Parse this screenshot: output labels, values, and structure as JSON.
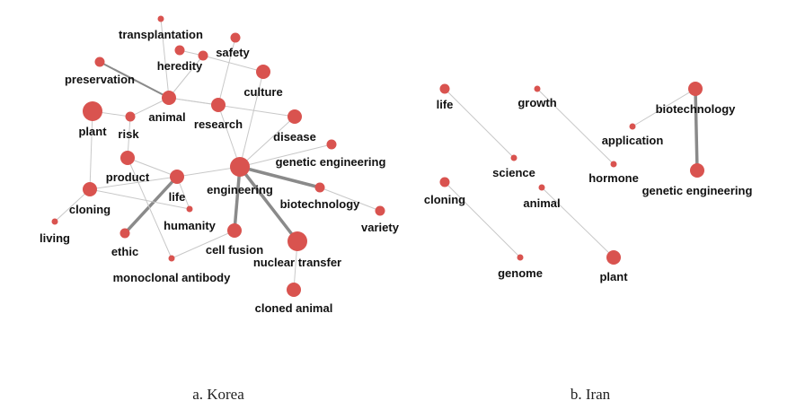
{
  "panels": [
    {
      "id": "korea",
      "caption": "a. Korea",
      "nodes": [
        {
          "id": "transplantation",
          "label": "transplantation",
          "size": "s"
        },
        {
          "id": "safety",
          "label": "safety",
          "size": "s"
        },
        {
          "id": "heredity",
          "label": "heredity",
          "size": "s"
        },
        {
          "id": "preservation",
          "label": "preservation",
          "size": "s"
        },
        {
          "id": "culture",
          "label": "culture",
          "size": "m"
        },
        {
          "id": "animal",
          "label": "animal",
          "size": "m"
        },
        {
          "id": "research",
          "label": "research",
          "size": "m"
        },
        {
          "id": "plant",
          "label": "plant",
          "size": "l"
        },
        {
          "id": "risk",
          "label": "risk",
          "size": "s"
        },
        {
          "id": "disease",
          "label": "disease",
          "size": "m"
        },
        {
          "id": "genetic_engineering",
          "label": "genetic engineering",
          "size": "s"
        },
        {
          "id": "product",
          "label": "product",
          "size": "m"
        },
        {
          "id": "life",
          "label": "life",
          "size": "m"
        },
        {
          "id": "engineering",
          "label": "engineering",
          "size": "l"
        },
        {
          "id": "cloning",
          "label": "cloning",
          "size": "m"
        },
        {
          "id": "biotechnology",
          "label": "biotechnology",
          "size": "s"
        },
        {
          "id": "humanity",
          "label": "humanity",
          "size": "xs"
        },
        {
          "id": "variety",
          "label": "variety",
          "size": "s"
        },
        {
          "id": "living",
          "label": "living",
          "size": "xs"
        },
        {
          "id": "ethic",
          "label": "ethic",
          "size": "s"
        },
        {
          "id": "cell_fusion",
          "label": "cell fusion",
          "size": "m"
        },
        {
          "id": "nuclear_transfer",
          "label": "nuclear transfer",
          "size": "l"
        },
        {
          "id": "monoclonal_antibody",
          "label": "monoclonal antibody",
          "size": "xs"
        },
        {
          "id": "cloned_animal",
          "label": "cloned animal",
          "size": "m"
        },
        {
          "id": "top_unlabeled",
          "label": "",
          "size": "xs"
        }
      ],
      "edges": [
        {
          "source": "top_unlabeled",
          "target": "animal",
          "weight": 1
        },
        {
          "source": "transplantation",
          "target": "heredity",
          "weight": 1
        },
        {
          "source": "heredity",
          "target": "animal",
          "weight": 1
        },
        {
          "source": "heredity",
          "target": "culture",
          "weight": 1
        },
        {
          "source": "safety",
          "target": "research",
          "weight": 1
        },
        {
          "source": "preservation",
          "target": "animal",
          "weight": 2
        },
        {
          "source": "animal",
          "target": "research",
          "weight": 1
        },
        {
          "source": "animal",
          "target": "disease",
          "weight": 1
        },
        {
          "source": "animal",
          "target": "risk",
          "weight": 1
        },
        {
          "source": "plant",
          "target": "risk",
          "weight": 1
        },
        {
          "source": "plant",
          "target": "cloning",
          "weight": 1
        },
        {
          "source": "research",
          "target": "engineering",
          "weight": 1
        },
        {
          "source": "culture",
          "target": "engineering",
          "weight": 1
        },
        {
          "source": "disease",
          "target": "engineering",
          "weight": 1
        },
        {
          "source": "genetic_engineering",
          "target": "engineering",
          "weight": 1
        },
        {
          "source": "risk",
          "target": "product",
          "weight": 1
        },
        {
          "source": "product",
          "target": "life",
          "weight": 1
        },
        {
          "source": "life",
          "target": "engineering",
          "weight": 1
        },
        {
          "source": "life",
          "target": "ethic",
          "weight": 3
        },
        {
          "source": "life",
          "target": "humanity",
          "weight": 1
        },
        {
          "source": "cloning",
          "target": "life",
          "weight": 1
        },
        {
          "source": "cloning",
          "target": "living",
          "weight": 1
        },
        {
          "source": "cloning",
          "target": "humanity",
          "weight": 1
        },
        {
          "source": "engineering",
          "target": "biotechnology",
          "weight": 3
        },
        {
          "source": "engineering",
          "target": "cell_fusion",
          "weight": 3
        },
        {
          "source": "engineering",
          "target": "nuclear_transfer",
          "weight": 3
        },
        {
          "source": "biotechnology",
          "target": "variety",
          "weight": 1
        },
        {
          "source": "cell_fusion",
          "target": "monoclonal_antibody",
          "weight": 1
        },
        {
          "source": "nuclear_transfer",
          "target": "cloned_animal",
          "weight": 1
        },
        {
          "source": "product",
          "target": "monoclonal_antibody",
          "weight": 1
        }
      ]
    },
    {
      "id": "iran",
      "caption": "b. Iran",
      "nodes": [
        {
          "id": "life",
          "label": "life",
          "size": "s"
        },
        {
          "id": "growth",
          "label": "growth",
          "size": "xs"
        },
        {
          "id": "biotechnology",
          "label": "biotechnology",
          "size": "m"
        },
        {
          "id": "application",
          "label": "application",
          "size": "xs"
        },
        {
          "id": "science",
          "label": "science",
          "size": "xs"
        },
        {
          "id": "hormone",
          "label": "hormone",
          "size": "xs"
        },
        {
          "id": "genetic_engineering",
          "label": "genetic engineering",
          "size": "m"
        },
        {
          "id": "cloning",
          "label": "cloning",
          "size": "s"
        },
        {
          "id": "animal",
          "label": "animal",
          "size": "xs"
        },
        {
          "id": "genome",
          "label": "genome",
          "size": "xs"
        },
        {
          "id": "plant",
          "label": "plant",
          "size": "m"
        }
      ],
      "edges": [
        {
          "source": "life",
          "target": "science",
          "weight": 1
        },
        {
          "source": "growth",
          "target": "hormone",
          "weight": 1
        },
        {
          "source": "application",
          "target": "biotechnology",
          "weight": 1
        },
        {
          "source": "biotechnology",
          "target": "genetic_engineering",
          "weight": 3
        },
        {
          "source": "cloning",
          "target": "genome",
          "weight": 1
        },
        {
          "source": "animal",
          "target": "plant",
          "weight": 1
        }
      ]
    }
  ]
}
